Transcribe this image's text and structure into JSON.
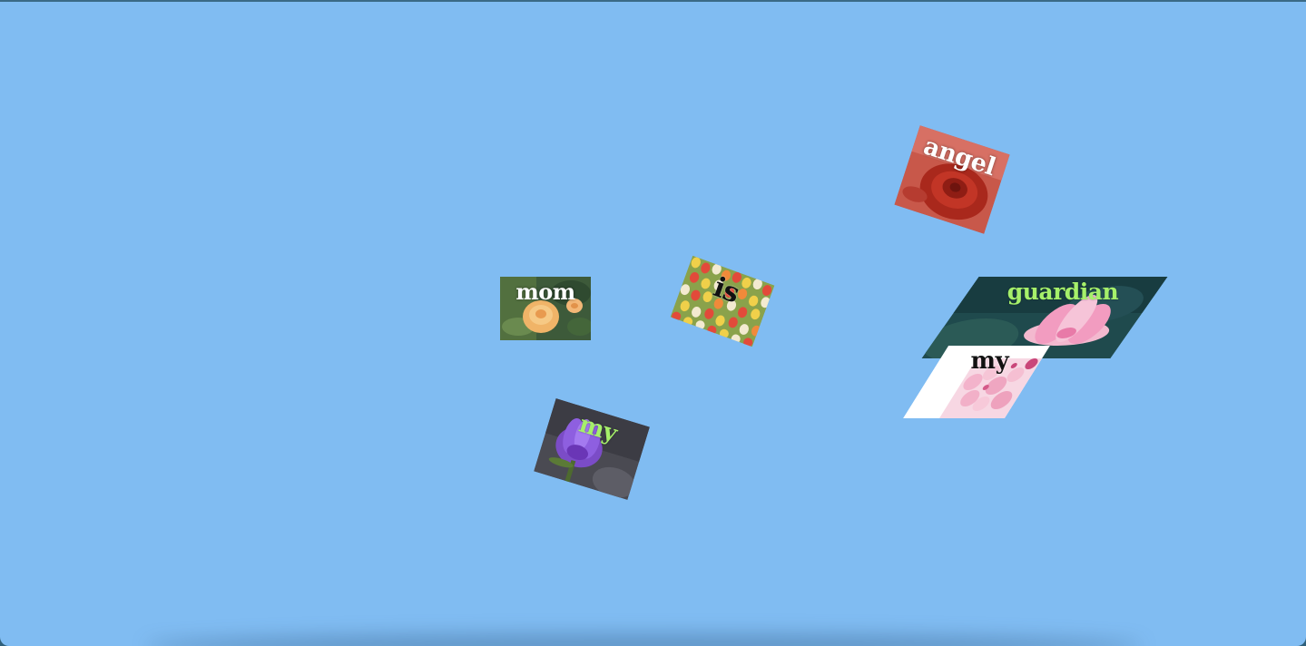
{
  "scene": {
    "background_color": "#80bcf2"
  },
  "cards": [
    {
      "word": "mom",
      "photo": "orange-rose",
      "text_color": "white"
    },
    {
      "word": "is",
      "photo": "tulip-field",
      "text_color": "black"
    },
    {
      "word": "angel",
      "photo": "red-rose",
      "text_color": "white"
    },
    {
      "word": "guardian",
      "photo": "pink-lotus",
      "text_color": "green"
    },
    {
      "word": "my",
      "photo": "cherry-blossom",
      "text_color": "black"
    },
    {
      "word": "my",
      "photo": "purple-lily",
      "text_color": "green"
    }
  ]
}
